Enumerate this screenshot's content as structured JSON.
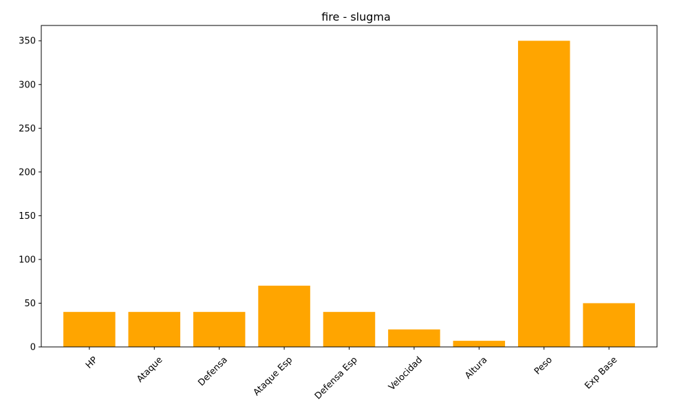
{
  "chart_data": {
    "type": "bar",
    "title": "fire - slugma",
    "xlabel": "",
    "ylabel": "",
    "categories": [
      "HP",
      "Ataque",
      "Defensa",
      "Ataque Esp",
      "Defensa Esp",
      "Velocidad",
      "Altura",
      "Peso",
      "Exp Base"
    ],
    "values": [
      40,
      40,
      40,
      70,
      40,
      20,
      7,
      350,
      50
    ],
    "ylim": [
      0,
      367.5
    ],
    "yticks": [
      0,
      50,
      100,
      150,
      200,
      250,
      300,
      350
    ],
    "bar_color": "#FFA500",
    "grid": false,
    "legend": "none"
  }
}
